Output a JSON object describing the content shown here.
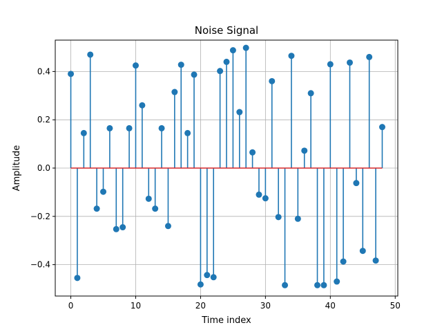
{
  "chart_data": {
    "type": "stem",
    "title": "Noise Signal",
    "xlabel": "Time index",
    "ylabel": "Amplitude",
    "xlim": [
      -2.4,
      50.4
    ],
    "ylim": [
      -0.53,
      0.53
    ],
    "xticks": [
      0,
      10,
      20,
      30,
      40,
      50
    ],
    "yticks": [
      -0.4,
      -0.2,
      0.0,
      0.2,
      0.4
    ],
    "xtick_labels": [
      "0",
      "10",
      "20",
      "30",
      "40",
      "50"
    ],
    "ytick_labels": [
      "−0.4",
      "−0.2",
      "0.0",
      "0.2",
      "0.4"
    ],
    "grid": true,
    "colors": {
      "stem": "#1f77b4",
      "baseline": "#d62728",
      "grid": "#b0b0b0"
    },
    "x": [
      0,
      1,
      2,
      3,
      4,
      5,
      6,
      7,
      8,
      9,
      10,
      11,
      12,
      13,
      14,
      15,
      16,
      17,
      18,
      19,
      20,
      21,
      22,
      23,
      24,
      25,
      26,
      27,
      28,
      29,
      30,
      31,
      32,
      33,
      34,
      35,
      36,
      37,
      38,
      39,
      40,
      41,
      42,
      43,
      44,
      45,
      46,
      47,
      48
    ],
    "values": [
      0.39,
      -0.455,
      0.145,
      0.47,
      -0.168,
      -0.098,
      0.165,
      -0.253,
      -0.245,
      0.165,
      0.425,
      0.26,
      -0.127,
      -0.168,
      0.165,
      -0.24,
      0.315,
      0.428,
      0.145,
      0.387,
      -0.482,
      -0.443,
      -0.452,
      0.402,
      0.44,
      0.488,
      0.232,
      0.498,
      0.065,
      -0.11,
      -0.125,
      0.36,
      -0.203,
      -0.485,
      0.465,
      -0.21,
      0.072,
      0.31,
      -0.485,
      -0.485,
      0.43,
      -0.47,
      -0.387,
      0.437,
      -0.062,
      -0.343,
      0.46,
      -0.383,
      0.17
    ]
  }
}
